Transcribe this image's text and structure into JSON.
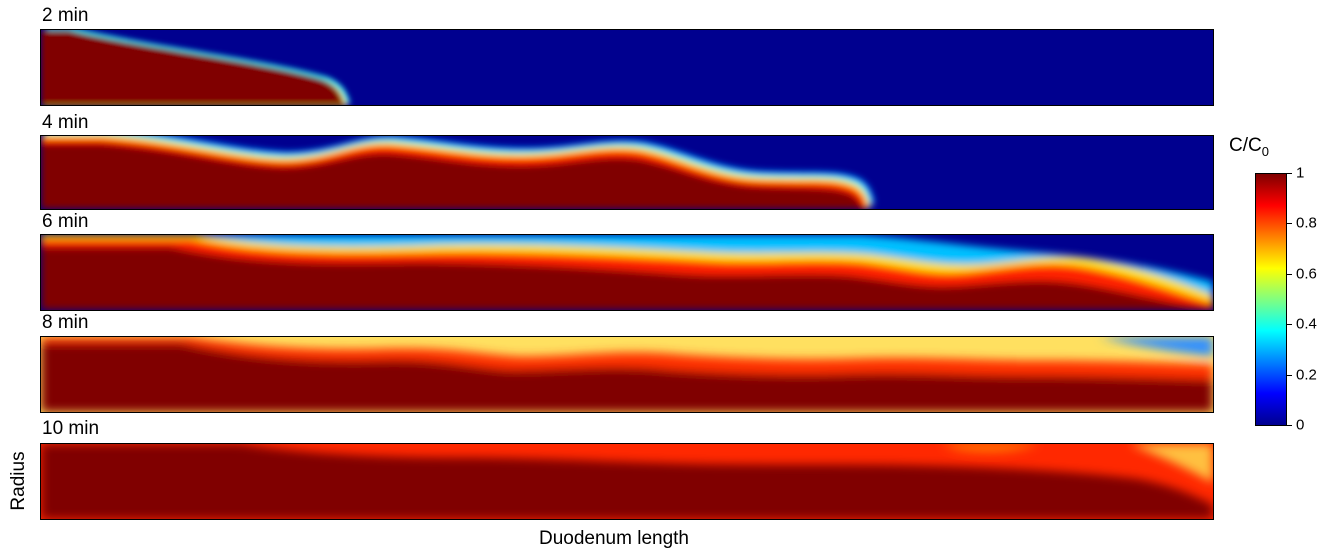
{
  "panels": [
    {
      "label": "2 min"
    },
    {
      "label": "4 min"
    },
    {
      "label": "6 min"
    },
    {
      "label": "8 min"
    },
    {
      "label": "10 min"
    }
  ],
  "x_axis_label": "Duodenum length",
  "y_axis_label": "Radius",
  "colorbar": {
    "title_main": "C/C",
    "title_sub": "0",
    "ticks": [
      "0",
      "0.2",
      "0.4",
      "0.6",
      "0.8",
      "1"
    ],
    "range": [
      0,
      1
    ]
  },
  "colors": {
    "low": "#00008f",
    "high": "#800000"
  }
}
